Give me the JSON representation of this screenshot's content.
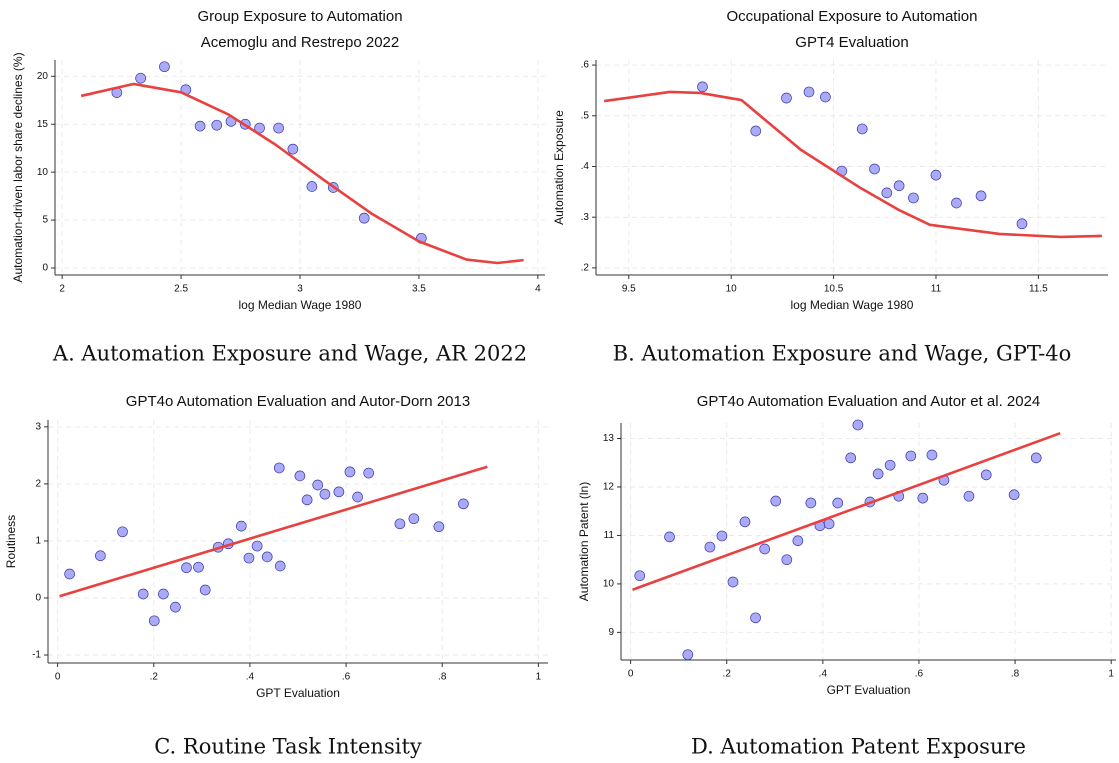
{
  "chart_data": [
    {
      "type": "scatter",
      "title": "Group Exposure to Automation",
      "subtitle": "Acemoglu and Restrepo 2022",
      "x_label": "log Median Wage 1980",
      "y_label": "Automation-driven labor share declines (%)",
      "caption": "A. Automation Exposure and Wage, AR 2022",
      "xlim": [
        1.97,
        4.03
      ],
      "xticks": [
        2,
        2.5,
        3,
        3.5,
        4
      ],
      "ylim": [
        -0.73,
        21.7
      ],
      "yticks": [
        0,
        5,
        10,
        15,
        20
      ],
      "grid": true,
      "points": {
        "color": "#9b9bf5",
        "x": [
          2.23,
          2.33,
          2.43,
          2.52,
          2.58,
          2.65,
          2.71,
          2.77,
          2.83,
          2.91,
          2.97,
          3.05,
          3.14,
          3.27,
          3.51
        ],
        "y": [
          18.3,
          19.8,
          21.0,
          18.6,
          14.8,
          14.9,
          15.3,
          15.0,
          14.6,
          14.6,
          12.4,
          8.5,
          8.4,
          5.2,
          3.1
        ]
      },
      "fit": {
        "color": "#e8413f",
        "x": [
          2.08,
          2.3,
          2.5,
          2.7,
          2.9,
          3.1,
          3.3,
          3.5,
          3.7,
          3.83,
          3.94
        ],
        "y": [
          17.95,
          19.2,
          18.33,
          16.01,
          12.82,
          9.19,
          5.69,
          2.78,
          0.88,
          0.52,
          0.82
        ]
      }
    },
    {
      "type": "scatter",
      "title": "Occupational Exposure to Automation",
      "subtitle": "GPT4 Evaluation",
      "x_label": "log Median Wage 1980",
      "y_label": "Automation Exposure",
      "caption": "B. Automation Exposure and Wage, GPT-4o",
      "xlim": [
        9.34,
        11.84
      ],
      "xticks": [
        9.5,
        10,
        10.5,
        11,
        11.5
      ],
      "ylim": [
        0.186,
        0.61
      ],
      "yticks": [
        {
          "value": 0.2,
          "label": ".2"
        },
        {
          "value": 0.3,
          "label": ".3"
        },
        {
          "value": 0.4,
          "label": ".4"
        },
        {
          "value": 0.5,
          "label": ".5"
        },
        {
          "value": 0.6,
          "label": ".6"
        }
      ],
      "grid": true,
      "points": {
        "color": "#9b9bf5",
        "x": [
          9.86,
          10.12,
          10.27,
          10.38,
          10.46,
          10.54,
          10.64,
          10.7,
          10.76,
          10.82,
          10.89,
          11.0,
          11.1,
          11.22,
          11.42
        ],
        "y": [
          0.557,
          0.47,
          0.535,
          0.547,
          0.537,
          0.391,
          0.474,
          0.395,
          0.348,
          0.362,
          0.338,
          0.383,
          0.328,
          0.342,
          0.287
        ]
      },
      "fit": {
        "color": "#e8413f",
        "x": [
          9.38,
          9.7,
          9.85,
          10.05,
          10.34,
          10.63,
          10.82,
          10.97,
          11.31,
          11.61,
          11.81
        ],
        "y": [
          0.529,
          0.547,
          0.545,
          0.531,
          0.433,
          0.358,
          0.314,
          0.285,
          0.267,
          0.261,
          0.263
        ]
      }
    },
    {
      "type": "scatter",
      "title": "GPT4o Automation Evaluation and Autor-Dorn 2013",
      "x_label": "GPT Evaluation",
      "y_label": "Routiness",
      "caption": "C. Routine Task Intensity",
      "xlim": [
        -0.02,
        1.02
      ],
      "xticks": [
        0,
        {
          "value": 0.2,
          "label": ".2"
        },
        {
          "value": 0.4,
          "label": ".4"
        },
        {
          "value": 0.6,
          "label": ".6"
        },
        {
          "value": 0.8,
          "label": ".8"
        },
        1
      ],
      "ylim": [
        -1.14,
        3.12
      ],
      "yticks": [
        -1,
        0,
        1,
        2,
        3
      ],
      "grid": true,
      "points": {
        "color": "#9b9bf5",
        "x": [
          0.025,
          0.089,
          0.135,
          0.178,
          0.201,
          0.22,
          0.245,
          0.268,
          0.293,
          0.307,
          0.334,
          0.355,
          0.382,
          0.398,
          0.415,
          0.436,
          0.461,
          0.463,
          0.504,
          0.519,
          0.541,
          0.556,
          0.585,
          0.608,
          0.624,
          0.647,
          0.712,
          0.741,
          0.793,
          0.844
        ],
        "y": [
          0.42,
          0.74,
          1.16,
          0.07,
          -0.4,
          0.07,
          -0.16,
          0.53,
          0.54,
          0.14,
          0.89,
          0.95,
          1.26,
          0.7,
          0.91,
          0.72,
          2.28,
          0.56,
          2.14,
          1.72,
          1.98,
          1.82,
          1.86,
          2.21,
          1.77,
          2.19,
          1.3,
          1.39,
          1.25,
          1.65
        ]
      },
      "fit": {
        "color": "#e8413f",
        "x": [
          0.004,
          0.894
        ],
        "y": [
          0.03,
          2.3
        ]
      }
    },
    {
      "type": "scatter",
      "title": "GPT4o Automation Evaluation and Autor et al. 2024",
      "x_label": "GPT Evaluation",
      "y_label": "Automation Patent (ln)",
      "caption": "D. Automation Patent Exposure",
      "xlim": [
        -0.02,
        1.01
      ],
      "xticks": [
        0,
        {
          "value": 0.2,
          "label": ".2"
        },
        {
          "value": 0.4,
          "label": ".4"
        },
        {
          "value": 0.6,
          "label": ".6"
        },
        {
          "value": 0.8,
          "label": ".8"
        },
        1
      ],
      "ylim": [
        8.43,
        13.32
      ],
      "yticks": [
        9,
        10,
        11,
        12,
        13
      ],
      "grid": true,
      "points": {
        "color": "#9b9bf5",
        "x": [
          0.019,
          0.081,
          0.119,
          0.165,
          0.19,
          0.213,
          0.238,
          0.26,
          0.279,
          0.302,
          0.325,
          0.348,
          0.375,
          0.394,
          0.413,
          0.431,
          0.458,
          0.473,
          0.498,
          0.515,
          0.54,
          0.558,
          0.583,
          0.608,
          0.627,
          0.652,
          0.704,
          0.74,
          0.798,
          0.844
        ],
        "y": [
          10.17,
          10.97,
          8.54,
          10.76,
          10.99,
          10.04,
          11.28,
          9.3,
          10.72,
          11.71,
          10.5,
          10.89,
          11.67,
          11.2,
          11.24,
          11.67,
          12.6,
          13.28,
          11.69,
          12.27,
          12.45,
          11.81,
          12.64,
          11.77,
          12.66,
          12.14,
          11.81,
          12.25,
          11.84,
          12.6
        ]
      },
      "fit": {
        "color": "#e8413f",
        "x": [
          0.004,
          0.894
        ],
        "y": [
          9.88,
          13.11
        ]
      }
    }
  ]
}
